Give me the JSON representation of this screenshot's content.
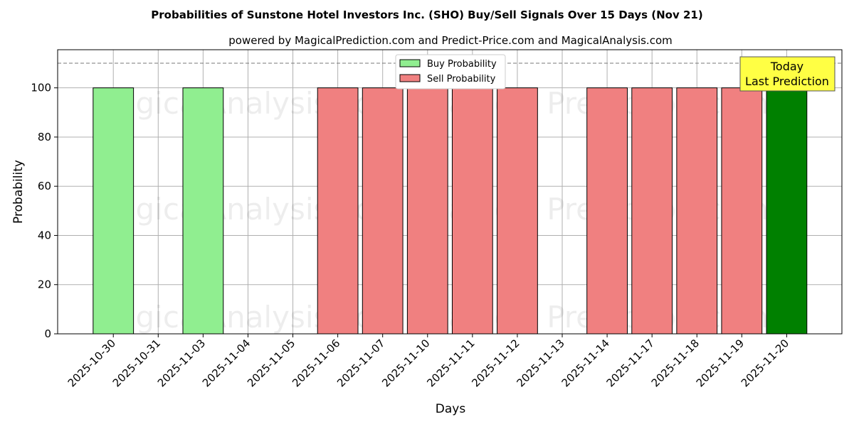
{
  "chart_data": {
    "type": "bar",
    "title": "Probabilities of Sunstone Hotel Investors Inc. (SHO) Buy/Sell Signals Over 15 Days (Nov 21)",
    "subtitle": "powered by MagicalPrediction.com and Predict-Price.com and MagicalAnalysis.com",
    "xlabel": "Days",
    "ylabel": "Probability",
    "ylim": [
      0,
      115.5
    ],
    "yticks": [
      0,
      20,
      40,
      60,
      80,
      100
    ],
    "reference_line": 110,
    "categories": [
      "2025-10-30",
      "2025-10-31",
      "2025-11-03",
      "2025-11-04",
      "2025-11-05",
      "2025-11-06",
      "2025-11-07",
      "2025-11-10",
      "2025-11-11",
      "2025-11-12",
      "2025-11-13",
      "2025-11-14",
      "2025-11-17",
      "2025-11-18",
      "2025-11-19",
      "2025-11-20"
    ],
    "series": [
      {
        "name": "Buy Probability",
        "color": "#90ee90",
        "values": [
          100,
          0,
          100,
          0,
          0,
          0,
          0,
          0,
          0,
          0,
          0,
          0,
          0,
          0,
          0,
          0
        ]
      },
      {
        "name": "Sell Probability",
        "color": "#f08080",
        "values": [
          0,
          0,
          0,
          0,
          0,
          100,
          100,
          100,
          100,
          100,
          0,
          100,
          100,
          100,
          100,
          0
        ]
      },
      {
        "name": "Today",
        "color": "#008000",
        "values": [
          0,
          0,
          0,
          0,
          0,
          0,
          0,
          0,
          0,
          0,
          0,
          0,
          0,
          0,
          0,
          100
        ]
      }
    ],
    "legend": {
      "placement": "top-center",
      "entries": [
        "Buy Probability",
        "Sell Probability"
      ]
    },
    "annotation": {
      "line1": "Today",
      "line2": "Last Prediction"
    },
    "grid": true,
    "watermarks": [
      "MagicalAnalysis.com",
      "Magical Prediction.com"
    ]
  }
}
